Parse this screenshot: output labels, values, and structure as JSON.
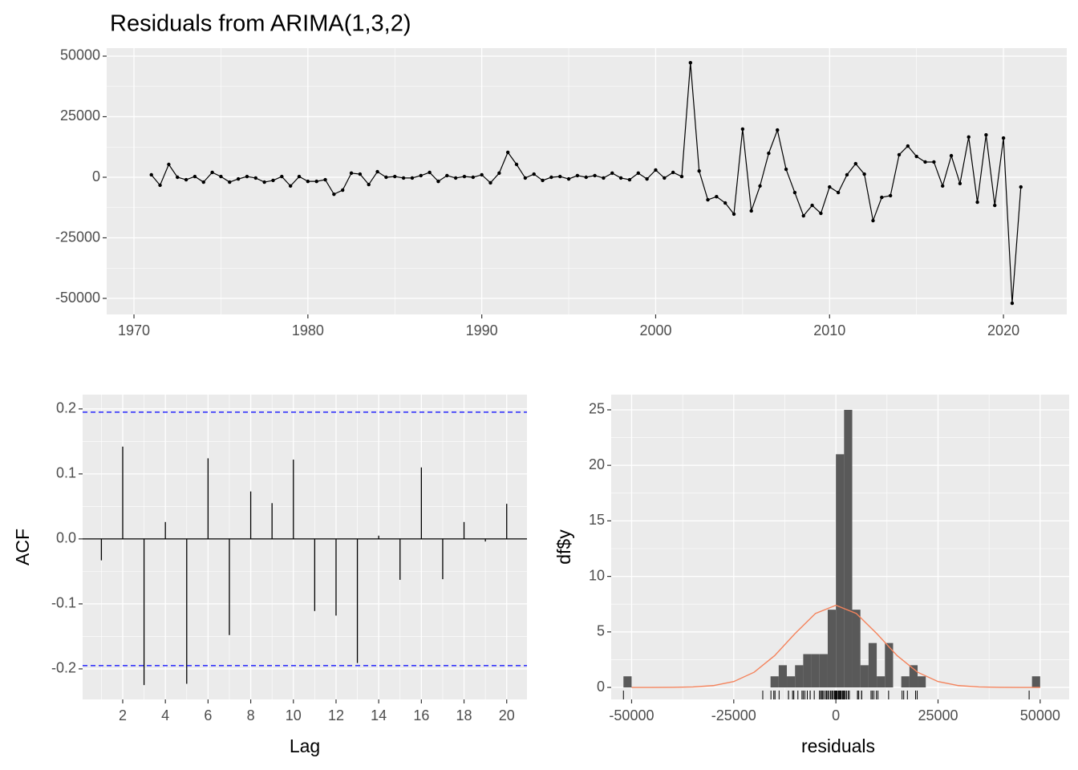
{
  "chart_data": [
    {
      "type": "line",
      "title": "Residuals from ARIMA(1,3,2)",
      "x": [
        1971,
        1971.5,
        1972,
        1972.5,
        1973,
        1973.5,
        1974,
        1974.5,
        1975,
        1975.5,
        1976,
        1976.5,
        1977,
        1977.5,
        1978,
        1978.5,
        1979,
        1979.5,
        1980,
        1980.5,
        1981,
        1981.5,
        1982,
        1982.5,
        1983,
        1983.5,
        1984,
        1984.5,
        1985,
        1985.5,
        1986,
        1986.5,
        1987,
        1987.5,
        1988,
        1988.5,
        1989,
        1989.5,
        1990,
        1990.5,
        1991,
        1991.5,
        1992,
        1992.5,
        1993,
        1993.5,
        1994,
        1994.5,
        1995,
        1995.5,
        1996,
        1996.5,
        1997,
        1997.5,
        1998,
        1998.5,
        1999,
        1999.5,
        2000,
        2000.5,
        2001,
        2001.5,
        2002,
        2002.5,
        2003,
        2003.5,
        2004,
        2004.5,
        2005,
        2005.5,
        2006,
        2006.5,
        2007,
        2007.5,
        2008,
        2008.5,
        2009,
        2009.5,
        2010,
        2010.5,
        2011,
        2011.5,
        2012,
        2012.5,
        2013,
        2013.5,
        2014,
        2014.5,
        2015,
        2015.5,
        2016,
        2016.5,
        2017,
        2017.5,
        2018,
        2018.5,
        2019,
        2019.5,
        2020,
        2020.5,
        2021
      ],
      "values": [
        1000,
        -3300,
        5300,
        0,
        -1000,
        300,
        -2000,
        2000,
        300,
        -2000,
        -700,
        300,
        -300,
        -2000,
        -1300,
        300,
        -3600,
        300,
        -1700,
        -1700,
        -1000,
        -7000,
        -5300,
        1700,
        1300,
        -3000,
        2300,
        0,
        300,
        -300,
        -300,
        700,
        2000,
        -1700,
        700,
        -300,
        300,
        0,
        1000,
        -2300,
        1700,
        10300,
        5300,
        -300,
        1300,
        -1300,
        0,
        300,
        -700,
        700,
        0,
        700,
        -300,
        1700,
        -300,
        -1000,
        1700,
        -700,
        3000,
        -300,
        2000,
        300,
        47300,
        2600,
        -9300,
        -8000,
        -10600,
        -15200,
        19900,
        -13900,
        -3600,
        9900,
        19500,
        3300,
        -6300,
        -15900,
        -11600,
        -14900,
        -4000,
        -6300,
        1000,
        5600,
        1300,
        -17900,
        -8300,
        -7600,
        9300,
        12900,
        8600,
        6300,
        6300,
        -3600,
        8900,
        -2600,
        16600,
        -10300,
        17500,
        -11600,
        16200,
        -52000,
        -4000
      ],
      "color": "#000000",
      "xlim": [
        1968.43,
        2023.64
      ],
      "ylim": [
        -56620,
        53310
      ],
      "xticks": [
        1970,
        1980,
        1990,
        2000,
        2010,
        2020
      ],
      "yticks": [
        -50000,
        -25000,
        0,
        25000,
        50000
      ],
      "xminor": [
        1975,
        1985,
        1995,
        2005,
        2015
      ],
      "yminor": [
        -37500,
        -12500,
        12500,
        37500
      ],
      "grid": true
    },
    {
      "type": "acf",
      "x_label": "Lag",
      "y_label": "ACF",
      "x": [
        1,
        2,
        3,
        4,
        5,
        6,
        7,
        8,
        9,
        10,
        11,
        12,
        13,
        14,
        15,
        16,
        17,
        18,
        19,
        20
      ],
      "values": [
        -0.033,
        0.142,
        -0.225,
        0.026,
        -0.223,
        0.124,
        -0.148,
        0.073,
        0.055,
        0.122,
        -0.111,
        -0.118,
        -0.191,
        0.005,
        -0.063,
        0.11,
        -0.062,
        0.026,
        -0.004,
        0.054
      ],
      "color": "#000000",
      "ci_lines": [
        0.195,
        -0.195
      ],
      "ci_color": "#0000ff",
      "xlim": [
        0.12,
        20.95
      ],
      "ylim": [
        -0.247,
        0.222
      ],
      "xticks": [
        2,
        4,
        6,
        8,
        10,
        12,
        14,
        16,
        18,
        20
      ],
      "yticks": [
        -0.2,
        -0.1,
        {
          "value": 0,
          "label": "0.0"
        },
        0.1,
        0.2
      ],
      "xminor": [
        1,
        3,
        5,
        7,
        9,
        11,
        13,
        15,
        17,
        19
      ],
      "yminor": [
        -0.15,
        -0.05,
        0.05,
        0.15
      ],
      "grid": true
    },
    {
      "type": "histogram",
      "x_label": "residuals",
      "y_label": "df$y",
      "bins": [
        -52000,
        -50000,
        -48000,
        -46000,
        -44000,
        -42000,
        -40000,
        -38000,
        -36000,
        -34000,
        -32000,
        -30000,
        -28000,
        -26000,
        -24000,
        -22000,
        -20000,
        -18000,
        -16000,
        -14000,
        -12000,
        -10000,
        -8000,
        -6000,
        -4000,
        -2000,
        0,
        2000,
        4000,
        6000,
        8000,
        10000,
        12000,
        14000,
        16000,
        18000,
        20000,
        22000,
        24000,
        26000,
        28000,
        30000,
        32000,
        34000,
        36000,
        38000,
        40000,
        42000,
        44000,
        46000,
        48000,
        50000
      ],
      "values": [
        1,
        0,
        0,
        0,
        0,
        0,
        0,
        0,
        0,
        0,
        0,
        0,
        0,
        0,
        0,
        0,
        0,
        0,
        1,
        2,
        1,
        2,
        3,
        3,
        3,
        7,
        21,
        25,
        7,
        2,
        4,
        1,
        4,
        0,
        1,
        2,
        1,
        0,
        0,
        0,
        0,
        0,
        0,
        0,
        0,
        0,
        0,
        0,
        0,
        0,
        1
      ],
      "color": "#595959",
      "density_curve": {
        "x": [
          -50000,
          -45000,
          -40000,
          -35000,
          -30000,
          -25000,
          -20000,
          -15000,
          -10000,
          -5000,
          0,
          5000,
          10000,
          15000,
          20000,
          25000,
          30000,
          35000,
          40000,
          45000,
          50000
        ],
        "values": [
          0,
          0.001,
          0.009,
          0.042,
          0.166,
          0.53,
          1.37,
          2.86,
          4.85,
          6.66,
          7.4,
          6.66,
          4.85,
          2.86,
          1.37,
          0.53,
          0.166,
          0.042,
          0.009,
          0.001,
          0
        ],
        "color": "#f4835c"
      },
      "xlim": [
        -55000,
        57100
      ],
      "ylim": [
        -1.08,
        26.37
      ],
      "xticks": [
        -50000,
        -25000,
        0,
        25000,
        50000
      ],
      "yticks": [
        0,
        5,
        10,
        15,
        20,
        25
      ],
      "xminor": [
        -37500,
        -12500,
        12500,
        37500
      ],
      "yminor": [
        2.5,
        7.5,
        12.5,
        17.5,
        22.5
      ],
      "grid": true
    }
  ]
}
